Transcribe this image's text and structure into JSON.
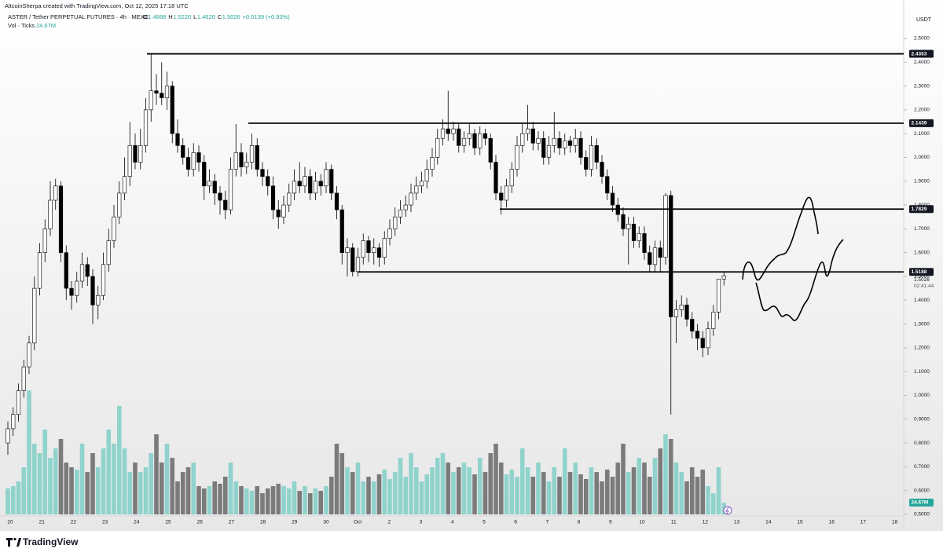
{
  "chart_data": {
    "type": "candlestick",
    "creator": "AltcoinSherpa created with TradingView.com, Oct 12, 2025 17:18 UTC",
    "title": "ASTER / Tether PERPETUAL FUTURES · 4h · MEXC",
    "legend": [
      {
        "label": "O",
        "value": "1.4888"
      },
      {
        "label": "H",
        "value": "1.5220"
      },
      {
        "label": "L",
        "value": "1.4620"
      },
      {
        "label": "C",
        "value": "1.5026"
      }
    ],
    "change": "+0.0139 (+0.93%)",
    "volume_label": "Vol · Ticks",
    "volume_value": "24.67M",
    "y_unit": "USDT",
    "countdown": "02:41:44",
    "brand": "TradingView",
    "up_color": "#ffffff",
    "down_color": "#000000",
    "candle_border": "#000000",
    "volume_up_color": "#8fd3cc",
    "volume_down_color": "#7b7b7b",
    "level_color": "#000000",
    "ylim": [
      0.4835,
      2.612
    ],
    "yticks": [
      {
        "value": 0.5,
        "label": "0.5000"
      },
      {
        "value": 0.6,
        "label": "0.6000"
      },
      {
        "value": 0.7,
        "label": "0.7000"
      },
      {
        "value": 0.8,
        "label": "0.8000"
      },
      {
        "value": 0.9,
        "label": "0.9000"
      },
      {
        "value": 1.0,
        "label": "1.0000"
      },
      {
        "value": 1.1,
        "label": "1.1000"
      },
      {
        "value": 1.2,
        "label": "1.2000"
      },
      {
        "value": 1.3,
        "label": "1.3000"
      },
      {
        "value": 1.4,
        "label": "1.4000"
      },
      {
        "value": 1.5,
        "label": "1.5000"
      },
      {
        "value": 1.6,
        "label": "1.6000"
      },
      {
        "value": 1.7,
        "label": "1.7000"
      },
      {
        "value": 1.8,
        "label": "1.8000"
      },
      {
        "value": 1.9,
        "label": "1.9000"
      },
      {
        "value": 2.0,
        "label": "2.0000"
      },
      {
        "value": 2.1,
        "label": "2.1000"
      },
      {
        "value": 2.2,
        "label": "2.2000"
      },
      {
        "value": 2.3,
        "label": "2.3000"
      },
      {
        "value": 2.4,
        "label": "2.4000"
      },
      {
        "value": 2.5,
        "label": "2.5000"
      }
    ],
    "categories": [
      "20",
      "21",
      "22",
      "23",
      "24",
      "25",
      "26",
      "27",
      "28",
      "29",
      "30",
      "Oct",
      "2",
      "3",
      "4",
      "5",
      "6",
      "7",
      "8",
      "9",
      "10",
      "11",
      "12",
      "13",
      "14",
      "15",
      "16",
      "17",
      "18"
    ],
    "levels": [
      2.4353,
      2.1439,
      1.7829,
      1.5188
    ],
    "ohlc": [
      [
        0.8,
        0.89,
        0.75,
        0.86
      ],
      [
        0.86,
        0.95,
        0.83,
        0.92
      ],
      [
        0.92,
        1.05,
        0.89,
        1.02
      ],
      [
        1.02,
        1.15,
        0.99,
        1.12
      ],
      [
        1.12,
        1.25,
        1.09,
        1.22
      ],
      [
        1.22,
        1.5,
        1.19,
        1.45
      ],
      [
        1.45,
        1.64,
        1.42,
        1.6
      ],
      [
        1.6,
        1.74,
        1.56,
        1.7
      ],
      [
        1.7,
        1.9,
        1.67,
        1.82
      ],
      [
        1.82,
        1.91,
        1.78,
        1.88
      ],
      [
        1.88,
        1.9,
        1.56,
        1.6
      ],
      [
        1.6,
        1.63,
        1.4,
        1.45
      ],
      [
        1.45,
        1.48,
        1.36,
        1.42
      ],
      [
        1.42,
        1.52,
        1.39,
        1.48
      ],
      [
        1.48,
        1.6,
        1.45,
        1.55
      ],
      [
        1.55,
        1.58,
        1.46,
        1.5
      ],
      [
        1.5,
        1.53,
        1.3,
        1.38
      ],
      [
        1.38,
        1.46,
        1.32,
        1.42
      ],
      [
        1.42,
        1.6,
        1.4,
        1.55
      ],
      [
        1.55,
        1.7,
        1.52,
        1.65
      ],
      [
        1.65,
        1.8,
        1.62,
        1.75
      ],
      [
        1.75,
        1.9,
        1.72,
        1.85
      ],
      [
        1.85,
        2.0,
        1.82,
        1.92
      ],
      [
        1.92,
        2.15,
        1.88,
        2.05
      ],
      [
        2.05,
        2.1,
        1.95,
        1.98
      ],
      [
        1.98,
        2.12,
        1.95,
        2.05
      ],
      [
        2.05,
        2.25,
        2.02,
        2.2
      ],
      [
        2.2,
        2.4353,
        2.15,
        2.28
      ],
      [
        2.28,
        2.35,
        2.22,
        2.27
      ],
      [
        2.27,
        2.4,
        2.22,
        2.25
      ],
      [
        2.25,
        2.36,
        2.2,
        2.3
      ],
      [
        2.3,
        2.32,
        2.06,
        2.1
      ],
      [
        2.1,
        2.16,
        2.02,
        2.05
      ],
      [
        2.05,
        2.08,
        1.97,
        2.0
      ],
      [
        2.0,
        2.04,
        1.92,
        1.95
      ],
      [
        1.95,
        2.06,
        1.92,
        2.02
      ],
      [
        2.02,
        2.05,
        1.94,
        1.98
      ],
      [
        1.98,
        2.01,
        1.82,
        1.88
      ],
      [
        1.88,
        1.95,
        1.85,
        1.9
      ],
      [
        1.9,
        1.93,
        1.8,
        1.85
      ],
      [
        1.85,
        1.88,
        1.76,
        1.82
      ],
      [
        1.82,
        1.86,
        1.74,
        1.78
      ],
      [
        1.78,
        2.0,
        1.76,
        1.95
      ],
      [
        1.95,
        2.14,
        1.92,
        2.02
      ],
      [
        2.02,
        2.06,
        1.92,
        1.96
      ],
      [
        1.96,
        2.02,
        1.93,
        1.98
      ],
      [
        1.98,
        2.1,
        1.95,
        2.05
      ],
      [
        2.05,
        2.08,
        1.92,
        1.95
      ],
      [
        1.95,
        1.98,
        1.88,
        1.92
      ],
      [
        1.92,
        1.95,
        1.84,
        1.88
      ],
      [
        1.88,
        1.92,
        1.74,
        1.78
      ],
      [
        1.78,
        1.82,
        1.7,
        1.75
      ],
      [
        1.75,
        1.84,
        1.72,
        1.8
      ],
      [
        1.8,
        1.89,
        1.77,
        1.85
      ],
      [
        1.85,
        1.95,
        1.82,
        1.9
      ],
      [
        1.9,
        1.98,
        1.85,
        1.88
      ],
      [
        1.88,
        1.96,
        1.85,
        1.92
      ],
      [
        1.92,
        1.95,
        1.82,
        1.85
      ],
      [
        1.85,
        1.94,
        1.82,
        1.9
      ],
      [
        1.9,
        1.93,
        1.84,
        1.88
      ],
      [
        1.88,
        1.98,
        1.85,
        1.95
      ],
      [
        1.95,
        1.97,
        1.82,
        1.85
      ],
      [
        1.85,
        1.88,
        1.74,
        1.78
      ],
      [
        1.78,
        1.8,
        1.55,
        1.6
      ],
      [
        1.6,
        1.66,
        1.5,
        1.62
      ],
      [
        1.62,
        1.64,
        1.5,
        1.52
      ],
      [
        1.52,
        1.62,
        1.5,
        1.58
      ],
      [
        1.58,
        1.68,
        1.55,
        1.65
      ],
      [
        1.65,
        1.67,
        1.56,
        1.6
      ],
      [
        1.6,
        1.66,
        1.55,
        1.62
      ],
      [
        1.62,
        1.64,
        1.54,
        1.58
      ],
      [
        1.58,
        1.69,
        1.55,
        1.66
      ],
      [
        1.66,
        1.74,
        1.63,
        1.7
      ],
      [
        1.7,
        1.79,
        1.67,
        1.75
      ],
      [
        1.75,
        1.82,
        1.72,
        1.78
      ],
      [
        1.78,
        1.84,
        1.75,
        1.8
      ],
      [
        1.8,
        1.89,
        1.77,
        1.85
      ],
      [
        1.85,
        1.92,
        1.82,
        1.88
      ],
      [
        1.88,
        1.94,
        1.85,
        1.9
      ],
      [
        1.9,
        1.99,
        1.87,
        1.95
      ],
      [
        1.95,
        2.04,
        1.92,
        2.0
      ],
      [
        2.0,
        2.12,
        1.97,
        2.08
      ],
      [
        2.08,
        2.16,
        2.05,
        2.12
      ],
      [
        2.12,
        2.28,
        2.07,
        2.1
      ],
      [
        2.1,
        2.15,
        2.07,
        2.12
      ],
      [
        2.12,
        2.14,
        2.02,
        2.05
      ],
      [
        2.05,
        2.11,
        2.02,
        2.08
      ],
      [
        2.08,
        2.14,
        2.05,
        2.1
      ],
      [
        2.1,
        2.12,
        2.01,
        2.04
      ],
      [
        2.04,
        2.13,
        2.01,
        2.1
      ],
      [
        2.1,
        2.12,
        2.05,
        2.08
      ],
      [
        2.08,
        2.1,
        1.95,
        1.98
      ],
      [
        1.98,
        2.01,
        1.82,
        1.85
      ],
      [
        1.85,
        1.88,
        1.76,
        1.82
      ],
      [
        1.82,
        1.91,
        1.79,
        1.88
      ],
      [
        1.88,
        1.98,
        1.85,
        1.95
      ],
      [
        1.95,
        2.09,
        1.92,
        2.05
      ],
      [
        2.05,
        2.14,
        2.02,
        2.1
      ],
      [
        2.1,
        2.22,
        2.07,
        2.12
      ],
      [
        2.12,
        2.15,
        2.03,
        2.06
      ],
      [
        2.06,
        2.11,
        2.03,
        2.08
      ],
      [
        2.08,
        2.11,
        1.97,
        2.0
      ],
      [
        2.0,
        2.09,
        1.97,
        2.05
      ],
      [
        2.05,
        2.19,
        2.02,
        2.08
      ],
      [
        2.08,
        2.11,
        2.01,
        2.04
      ],
      [
        2.04,
        2.1,
        2.01,
        2.07
      ],
      [
        2.07,
        2.09,
        2.02,
        2.05
      ],
      [
        2.05,
        2.12,
        2.02,
        2.08
      ],
      [
        2.08,
        2.11,
        1.97,
        2.0
      ],
      [
        2.0,
        2.03,
        1.92,
        1.95
      ],
      [
        1.95,
        2.09,
        1.92,
        2.05
      ],
      [
        2.05,
        2.08,
        1.95,
        1.98
      ],
      [
        1.98,
        2.01,
        1.89,
        1.92
      ],
      [
        1.92,
        1.95,
        1.82,
        1.85
      ],
      [
        1.85,
        1.88,
        1.77,
        1.8
      ],
      [
        1.8,
        1.83,
        1.73,
        1.76
      ],
      [
        1.76,
        1.79,
        1.67,
        1.7
      ],
      [
        1.7,
        1.75,
        1.55,
        1.72
      ],
      [
        1.72,
        1.75,
        1.62,
        1.65
      ],
      [
        1.65,
        1.71,
        1.62,
        1.68
      ],
      [
        1.68,
        1.71,
        1.57,
        1.6
      ],
      [
        1.6,
        1.63,
        1.52,
        1.55
      ],
      [
        1.55,
        1.65,
        1.52,
        1.62
      ],
      [
        1.62,
        1.65,
        1.52,
        1.58
      ],
      [
        1.58,
        1.85,
        1.55,
        1.84
      ],
      [
        1.84,
        1.86,
        0.92,
        1.33
      ],
      [
        1.33,
        1.4,
        1.22,
        1.36
      ],
      [
        1.36,
        1.42,
        1.33,
        1.38
      ],
      [
        1.38,
        1.41,
        1.29,
        1.32
      ],
      [
        1.32,
        1.35,
        1.24,
        1.27
      ],
      [
        1.27,
        1.3,
        1.19,
        1.24
      ],
      [
        1.24,
        1.27,
        1.16,
        1.2
      ],
      [
        1.2,
        1.31,
        1.17,
        1.28
      ],
      [
        1.28,
        1.38,
        1.25,
        1.35
      ],
      [
        1.35,
        1.49,
        1.32,
        1.4888
      ],
      [
        1.4888,
        1.522,
        1.462,
        1.5026
      ]
    ],
    "volume": [
      55,
      60,
      70,
      100,
      263,
      150,
      130,
      180,
      120,
      140,
      160,
      110,
      100,
      95,
      150,
      90,
      130,
      100,
      140,
      180,
      150,
      230,
      140,
      90,
      110,
      90,
      100,
      130,
      170,
      110,
      150,
      120,
      70,
      90,
      100,
      110,
      60,
      55,
      60,
      70,
      65,
      80,
      110,
      70,
      60,
      55,
      50,
      60,
      45,
      55,
      60,
      65,
      60,
      55,
      70,
      50,
      60,
      45,
      55,
      50,
      60,
      80,
      150,
      130,
      100,
      90,
      110,
      70,
      80,
      70,
      85,
      95,
      75,
      90,
      120,
      80,
      130,
      100,
      70,
      85,
      100,
      120,
      130,
      110,
      90,
      100,
      110,
      100,
      85,
      120,
      90,
      130,
      150,
      110,
      85,
      95,
      80,
      140,
      100,
      80,
      110,
      90,
      70,
      100,
      80,
      140,
      90,
      110,
      85,
      75,
      100,
      90,
      70,
      95,
      80,
      110,
      150,
      90,
      100,
      120,
      110,
      80,
      120,
      140,
      170,
      160,
      110,
      90,
      70,
      100,
      80,
      95,
      60,
      45,
      100,
      24.67
    ]
  }
}
